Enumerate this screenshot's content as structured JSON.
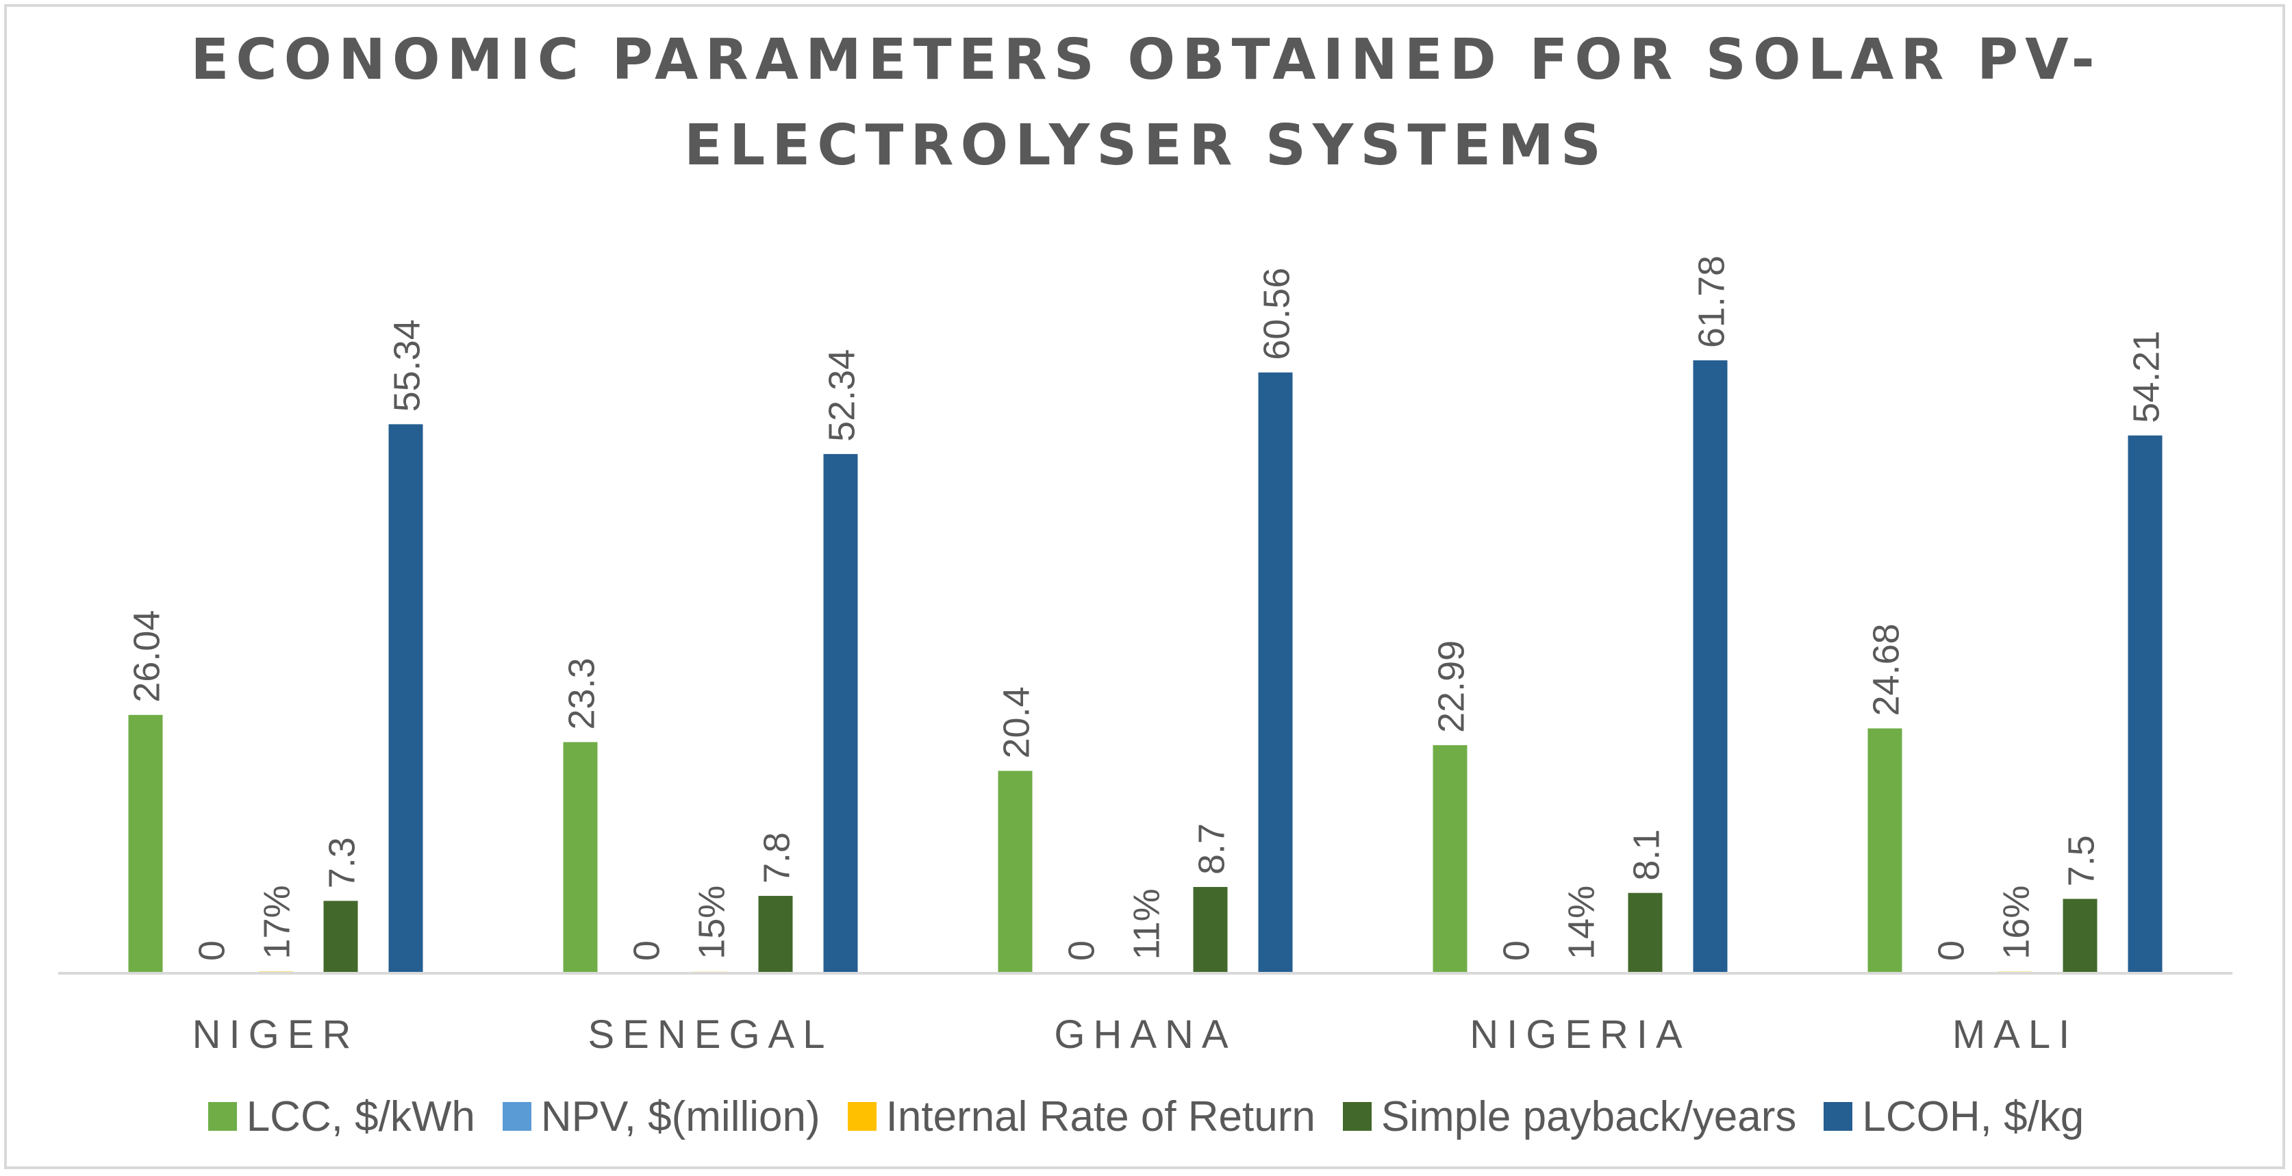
{
  "chart_data": {
    "type": "bar",
    "title_line1": "ECONOMIC PARAMETERS OBTAINED FOR SOLAR PV-",
    "title_line2": "ELECTROLYSER SYSTEMS",
    "categories": [
      "NIGER",
      "SENEGAL",
      "GHANA",
      "NIGERIA",
      "MALI"
    ],
    "series": [
      {
        "name": "LCC, $/kWh",
        "color": "#70ad47",
        "values": [
          26.04,
          23.3,
          20.4,
          22.99,
          24.68
        ],
        "labels": [
          "26.04",
          "23.3",
          "20.4",
          "22.99",
          "24.68"
        ]
      },
      {
        "name": "NPV, $(million)",
        "color": "#5b9bd5",
        "values": [
          0,
          0,
          0,
          0,
          0
        ],
        "labels": [
          "0",
          "0",
          "0",
          "0",
          "0"
        ]
      },
      {
        "name": "Internal Rate of Return",
        "color": "#ffc000",
        "values": [
          0.17,
          0.15,
          0.11,
          0.14,
          0.16
        ],
        "labels": [
          "17%",
          "15%",
          "11%",
          "14%",
          "16%"
        ]
      },
      {
        "name": "Simple payback/years",
        "color": "#43682b",
        "values": [
          7.3,
          7.8,
          8.7,
          8.1,
          7.5
        ],
        "labels": [
          "7.3",
          "7.8",
          "8.7",
          "8.1",
          "7.5"
        ]
      },
      {
        "name": "LCOH, $/kg",
        "color": "#255e91",
        "values": [
          55.34,
          52.34,
          60.56,
          61.78,
          54.21
        ],
        "labels": [
          "55.34",
          "52.34",
          "60.56",
          "61.78",
          "54.21"
        ]
      }
    ],
    "ylim": [
      0,
      66
    ],
    "legend_position": "bottom",
    "grid": false
  }
}
